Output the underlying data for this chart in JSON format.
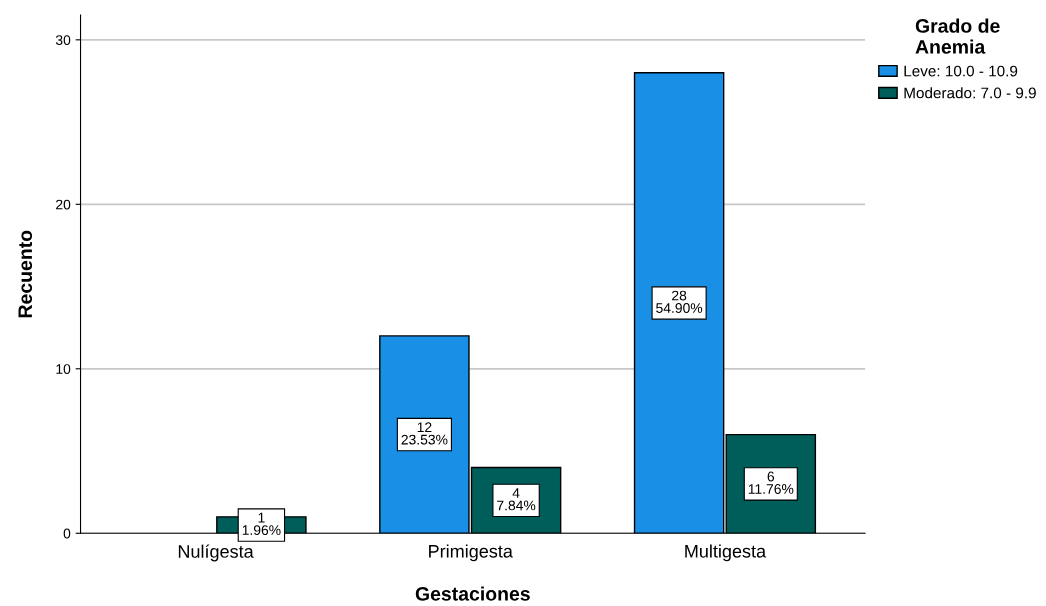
{
  "chart_data": {
    "type": "bar",
    "xlabel": "Gestaciones",
    "ylabel": "Recuento",
    "legend_title": "Grado de\nAnemia",
    "categories": [
      "Nulígesta",
      "Primigesta",
      "Multigesta"
    ],
    "series": [
      {
        "name": "Leve: 10.0 - 10.9",
        "color": "#1a8fe6",
        "values": [
          null,
          12,
          28
        ],
        "value_labels": [
          null,
          "12\n23.53%",
          "28\n54.90%"
        ]
      },
      {
        "name": "Moderado: 7.0 - 9.9",
        "color": "#005e5a",
        "values": [
          1,
          4,
          6
        ],
        "value_labels": [
          "1\n1.96%",
          "4\n7.84%",
          "6\n11.76%"
        ]
      }
    ],
    "ylim": [
      0,
      31.5
    ],
    "yticks": [
      0,
      10,
      20,
      30
    ],
    "grid": "y",
    "legend": "top right"
  }
}
